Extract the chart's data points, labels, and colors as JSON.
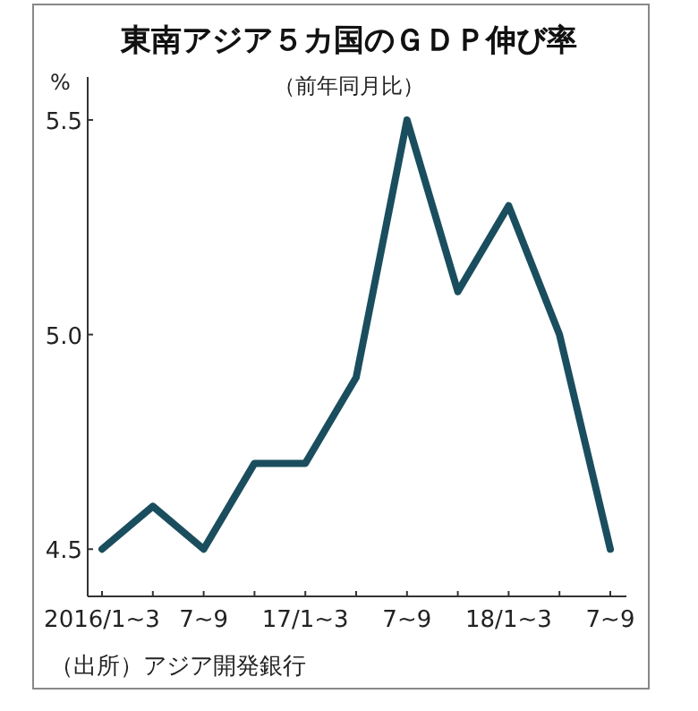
{
  "chart_data": {
    "type": "line",
    "title": "東南アジア５カ国のＧＤＰ伸び率",
    "subtitle": "（前年同月比）",
    "ylabel": "%",
    "categories": [
      "2016/1~3",
      null,
      "7~9",
      null,
      "17/1~3",
      null,
      "7~9",
      null,
      "18/1~3",
      null,
      "7~9"
    ],
    "series": [
      {
        "color": "#1a4e5e",
        "values": [
          4.5,
          4.6,
          4.5,
          4.7,
          4.7,
          4.9,
          5.5,
          5.1,
          5.3,
          5.0,
          4.5
        ]
      }
    ],
    "ylim": [
      4.39,
      5.6
    ],
    "yticks": [
      4.5,
      {
        "value": 5.0,
        "label": "5.0"
      },
      5.5
    ],
    "grid": false,
    "marker": "none",
    "line_style": "solid",
    "annotations": [
      "（出所）アジア開発銀行"
    ]
  }
}
